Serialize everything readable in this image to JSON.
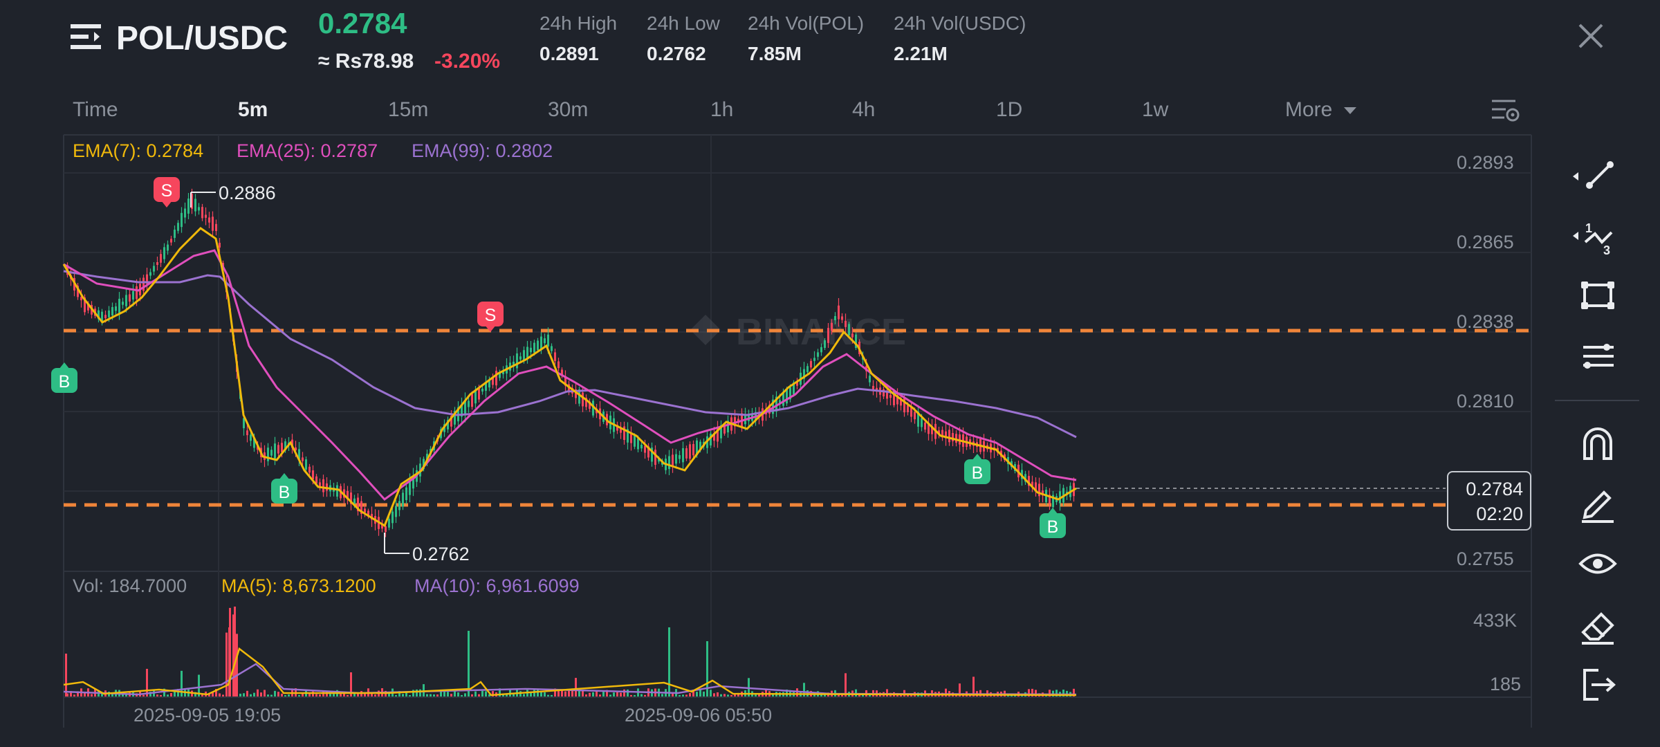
{
  "header": {
    "pair": "POL/USDC",
    "price": "0.2784",
    "approx_local": "≈ Rs78.98",
    "change": "-3.20%",
    "stats": [
      {
        "label": "24h High",
        "value": "0.2891"
      },
      {
        "label": "24h Low",
        "value": "0.2762"
      },
      {
        "label": "24h Vol(POL)",
        "value": "7.85M"
      },
      {
        "label": "24h Vol(USDC)",
        "value": "2.21M"
      }
    ]
  },
  "timeframes": {
    "items": [
      "Time",
      "5m",
      "15m",
      "30m",
      "1h",
      "4h",
      "1D",
      "1w"
    ],
    "active": "5m",
    "more": "More"
  },
  "indicators": {
    "ema7": "EMA(7): 0.2784",
    "ema25": "EMA(25): 0.2787",
    "ema99": "EMA(99): 0.2802",
    "vol": "Vol: 184.7000",
    "ma5": "MA(5): 8,673.1200",
    "ma10": "MA(10): 6,961.6099"
  },
  "price_axis": [
    "0.2893",
    "0.2865",
    "0.2838",
    "0.2810",
    "0.2755"
  ],
  "current_price": {
    "value": "0.2784",
    "countdown": "02:20"
  },
  "annotations": {
    "high": "0.2886",
    "low": "0.2762"
  },
  "markers": {
    "sell": "S",
    "buy": "B"
  },
  "volume_axis": [
    "433K",
    "185"
  ],
  "time_axis": [
    "2025-09-05 19:05",
    "2025-09-06 05:50"
  ],
  "watermark": "BINANCE",
  "colors": {
    "up": "#2ebd85",
    "down": "#f6465d",
    "ema7": "#f0b90b",
    "ema25": "#e04fbd",
    "ema99": "#9b72d0",
    "level": "#f0853a",
    "background": "#1f232b"
  },
  "tools": [
    "trend-line-icon",
    "fibonacci-icon",
    "rectangle-icon",
    "parallel-channel-icon",
    "magnet-icon",
    "pencil-icon",
    "eye-icon",
    "eraser-icon",
    "exit-icon"
  ]
}
